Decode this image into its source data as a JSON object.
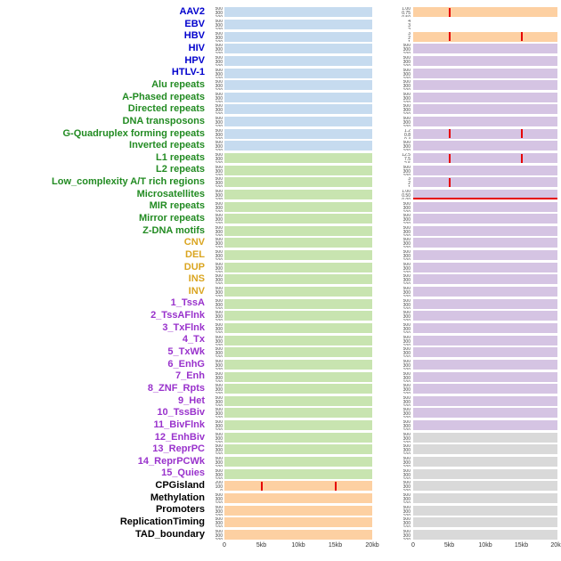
{
  "chart_data": {
    "type": "area",
    "title": "",
    "x_axis": {
      "ticks": [
        "0",
        "5kb",
        "10kb",
        "15kb",
        "20kb"
      ],
      "tick_positions_pct": [
        0,
        25,
        50,
        75,
        100
      ],
      "range_kb": [
        0,
        20
      ]
    },
    "default_ticks": [
      "500",
      "300",
      "100"
    ],
    "palette": {
      "blue": "#c6dbef",
      "green": "#c8e4b0",
      "orange": "#fdd0a2",
      "purple": "#d5c4e3",
      "gray": "#d9d9d9",
      "white": "#ffffff"
    },
    "groups": {
      "virus": "#0000cd",
      "repeat": "#228b22",
      "sv": "#DAA520",
      "chromatin": "#9932cc",
      "other": "#000000"
    },
    "spike_color": "#e60000",
    "tracks": [
      {
        "label": "AAV2",
        "group": "virus",
        "left": "blue",
        "right": "orange",
        "right_spikes_kb": [
          5
        ],
        "right_ticks": [
          "1.00",
          "0.75",
          "0.50",
          "0.25"
        ]
      },
      {
        "label": "EBV",
        "group": "virus",
        "left": "blue",
        "right": "white",
        "right_ticks": [
          "4",
          "3",
          "2",
          "1"
        ]
      },
      {
        "label": "HBV",
        "group": "virus",
        "left": "blue",
        "right": "orange",
        "right_spikes_kb": [
          5,
          15
        ],
        "right_ticks": [
          "3",
          "2",
          "1"
        ]
      },
      {
        "label": "HIV",
        "group": "virus",
        "left": "blue",
        "right": "purple"
      },
      {
        "label": "HPV",
        "group": "virus",
        "left": "blue",
        "right": "purple"
      },
      {
        "label": "HTLV-1",
        "group": "virus",
        "left": "blue",
        "right": "purple"
      },
      {
        "label": "Alu repeats",
        "group": "repeat",
        "left": "blue",
        "right": "purple"
      },
      {
        "label": "A-Phased repeats",
        "group": "repeat",
        "left": "blue",
        "right": "purple"
      },
      {
        "label": "Directed repeats",
        "group": "repeat",
        "left": "blue",
        "right": "purple"
      },
      {
        "label": "DNA transposons",
        "group": "repeat",
        "left": "blue",
        "right": "purple"
      },
      {
        "label": "G-Quadruplex forming repeats",
        "group": "repeat",
        "left": "blue",
        "right": "purple",
        "right_spikes_kb": [
          5,
          15
        ],
        "right_ticks": [
          "1.2",
          "0.8",
          "0.4"
        ]
      },
      {
        "label": "Inverted repeats",
        "group": "repeat",
        "left": "blue",
        "right": "purple"
      },
      {
        "label": "L1 repeats",
        "group": "repeat",
        "left": "green",
        "right": "purple",
        "right_spikes_kb": [
          5,
          15
        ],
        "right_ticks": [
          "12.5",
          "7.5",
          "2.5"
        ]
      },
      {
        "label": "L2 repeats",
        "group": "repeat",
        "left": "green",
        "right": "purple"
      },
      {
        "label": "Low_complexity A/T rich regions",
        "group": "repeat",
        "left": "green",
        "right": "purple",
        "right_spikes_kb": [
          5
        ],
        "right_ticks": [
          "3",
          "2",
          "1"
        ]
      },
      {
        "label": "Microsatellites",
        "group": "repeat",
        "left": "green",
        "right": "purple",
        "right_baseline": true,
        "right_ticks": [
          "1.00",
          "0.50",
          "0.00"
        ]
      },
      {
        "label": "MIR repeats",
        "group": "repeat",
        "left": "green",
        "right": "purple"
      },
      {
        "label": "Mirror repeats",
        "group": "repeat",
        "left": "green",
        "right": "purple"
      },
      {
        "label": "Z-DNA motifs",
        "group": "repeat",
        "left": "green",
        "right": "purple"
      },
      {
        "label": "CNV",
        "group": "sv",
        "left": "green",
        "right": "purple"
      },
      {
        "label": "DEL",
        "group": "sv",
        "left": "green",
        "right": "purple"
      },
      {
        "label": "DUP",
        "group": "sv",
        "left": "green",
        "right": "purple"
      },
      {
        "label": "INS",
        "group": "sv",
        "left": "green",
        "right": "purple"
      },
      {
        "label": "INV",
        "group": "sv",
        "left": "green",
        "right": "purple"
      },
      {
        "label": "1_TssA",
        "group": "chromatin",
        "left": "green",
        "right": "purple"
      },
      {
        "label": "2_TssAFlnk",
        "group": "chromatin",
        "left": "green",
        "right": "purple"
      },
      {
        "label": "3_TxFlnk",
        "group": "chromatin",
        "left": "green",
        "right": "purple"
      },
      {
        "label": "4_Tx",
        "group": "chromatin",
        "left": "green",
        "right": "purple"
      },
      {
        "label": "5_TxWk",
        "group": "chromatin",
        "left": "green",
        "right": "purple"
      },
      {
        "label": "6_EnhG",
        "group": "chromatin",
        "left": "green",
        "right": "purple"
      },
      {
        "label": "7_Enh",
        "group": "chromatin",
        "left": "green",
        "right": "purple"
      },
      {
        "label": "8_ZNF_Rpts",
        "group": "chromatin",
        "left": "green",
        "right": "purple"
      },
      {
        "label": "9_Het",
        "group": "chromatin",
        "left": "green",
        "right": "purple"
      },
      {
        "label": "10_TssBiv",
        "group": "chromatin",
        "left": "green",
        "right": "purple"
      },
      {
        "label": "11_BivFlnk",
        "group": "chromatin",
        "left": "green",
        "right": "purple"
      },
      {
        "label": "12_EnhBiv",
        "group": "chromatin",
        "left": "green",
        "right": "gray"
      },
      {
        "label": "13_ReprPC",
        "group": "chromatin",
        "left": "green",
        "right": "gray"
      },
      {
        "label": "14_ReprPCWk",
        "group": "chromatin",
        "left": "green",
        "right": "gray"
      },
      {
        "label": "15_Quies",
        "group": "chromatin",
        "left": "green",
        "right": "gray"
      },
      {
        "label": "CPGisland",
        "group": "other",
        "left": "orange",
        "right": "gray",
        "left_spikes_kb": [
          5,
          15
        ],
        "left_ticks": [
          "200",
          "100",
          "0"
        ]
      },
      {
        "label": "Methylation",
        "group": "other",
        "left": "orange",
        "right": "gray"
      },
      {
        "label": "Promoters",
        "group": "other",
        "left": "orange",
        "right": "gray"
      },
      {
        "label": "ReplicationTiming",
        "group": "other",
        "left": "orange",
        "right": "gray"
      },
      {
        "label": "TAD_boundary",
        "group": "other",
        "left": "orange",
        "right": "gray"
      }
    ]
  }
}
